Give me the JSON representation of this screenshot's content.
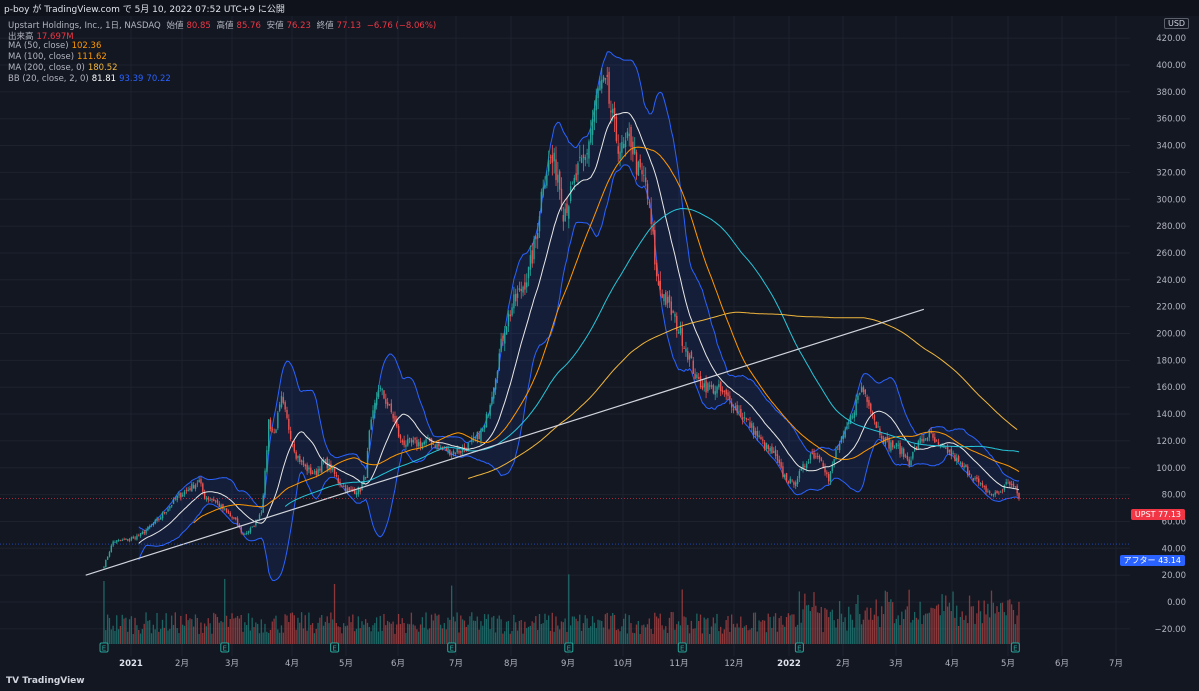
{
  "header": {
    "publish_text": "p-boy が TradingView.com で 5月 10, 2022 07:52 UTC+9 に公開"
  },
  "legend": {
    "symbol": "Upstart Holdings, Inc., 1日, NASDAQ",
    "ohlc": {
      "open_label": "始値",
      "open": "80.85",
      "high_label": "高値",
      "high": "85.76",
      "low_label": "安値",
      "low": "76.23",
      "close_label": "終値",
      "close": "77.13",
      "change": "−6.76 (−8.06%)"
    },
    "volume_label": "出来高",
    "volume": "17.697M",
    "ma50_label": "MA (50, close)",
    "ma50": "102.36",
    "ma100_label": "MA (100, close)",
    "ma100": "111.62",
    "ma200_label": "MA (200, close, 0)",
    "ma200": "180.52",
    "bb_label": "BB (20, close, 2, 0)",
    "bb_mid": "81.81",
    "bb_upper": "93.39",
    "bb_lower": "70.22"
  },
  "price_labels": {
    "currency": "USD",
    "current_symbol": "UPST",
    "current_price": "77.13",
    "after_label": "アフター",
    "after_value": "43.14"
  },
  "footer": {
    "brand": "TradingView"
  },
  "colors": {
    "background": "#131722",
    "up": "#26a69a",
    "down": "#ef5350",
    "bb": "#2962ff",
    "ma_white": "#e8e8e8",
    "ma_orange": "#ff9800",
    "ma_cyan": "#26c6da",
    "ma_yellow": "#f0b63c",
    "trendline": "#d1d4dc"
  },
  "chart_data": {
    "type": "candlestick",
    "symbol": "UPST",
    "y_ticks": [
      "420.00",
      "400.00",
      "380.00",
      "360.00",
      "340.00",
      "320.00",
      "300.00",
      "280.00",
      "260.00",
      "240.00",
      "220.00",
      "200.00",
      "180.00",
      "160.00",
      "140.00",
      "120.00",
      "100.00",
      "80.00",
      "60.00",
      "40.00",
      "20.00",
      "0.00",
      "−20.00"
    ],
    "x_ticks": [
      "2021",
      "2月",
      "3月",
      "4月",
      "5月",
      "6月",
      "7月",
      "8月",
      "9月",
      "10月",
      "11月",
      "12月",
      "2022",
      "2月",
      "3月",
      "4月",
      "5月",
      "6月",
      "7月"
    ],
    "price_path": [
      [
        0,
        27
      ],
      [
        5,
        45
      ],
      [
        12,
        46
      ],
      [
        20,
        50
      ],
      [
        30,
        62
      ],
      [
        40,
        78
      ],
      [
        47,
        85
      ],
      [
        52,
        90
      ],
      [
        55,
        78
      ],
      [
        60,
        76
      ],
      [
        66,
        68
      ],
      [
        72,
        60
      ],
      [
        76,
        50
      ],
      [
        81,
        55
      ],
      [
        86,
        68
      ],
      [
        88,
        95
      ],
      [
        90,
        135
      ],
      [
        93,
        125
      ],
      [
        97,
        150
      ],
      [
        101,
        130
      ],
      [
        105,
        110
      ],
      [
        110,
        100
      ],
      [
        115,
        95
      ],
      [
        120,
        105
      ],
      [
        124,
        100
      ],
      [
        128,
        90
      ],
      [
        134,
        82
      ],
      [
        140,
        84
      ],
      [
        143,
        95
      ],
      [
        145,
        125
      ],
      [
        150,
        160
      ],
      [
        154,
        150
      ],
      [
        158,
        138
      ],
      [
        162,
        120
      ],
      [
        166,
        118
      ],
      [
        172,
        118
      ],
      [
        178,
        120
      ],
      [
        184,
        115
      ],
      [
        190,
        112
      ],
      [
        196,
        113
      ],
      [
        202,
        120
      ],
      [
        208,
        130
      ],
      [
        214,
        170
      ],
      [
        219,
        205
      ],
      [
        223,
        220
      ],
      [
        227,
        230
      ],
      [
        232,
        245
      ],
      [
        236,
        270
      ],
      [
        240,
        315
      ],
      [
        244,
        330
      ],
      [
        248,
        320
      ],
      [
        251,
        292
      ],
      [
        255,
        302
      ],
      [
        259,
        320
      ],
      [
        263,
        330
      ],
      [
        267,
        360
      ],
      [
        271,
        385
      ],
      [
        275,
        380
      ],
      [
        279,
        350
      ],
      [
        283,
        335
      ],
      [
        288,
        345
      ],
      [
        292,
        320
      ],
      [
        296,
        312
      ],
      [
        300,
        270
      ],
      [
        302,
        240
      ],
      [
        306,
        228
      ],
      [
        312,
        210
      ],
      [
        318,
        190
      ],
      [
        324,
        165
      ],
      [
        330,
        160
      ],
      [
        336,
        158
      ],
      [
        342,
        150
      ],
      [
        348,
        140
      ],
      [
        354,
        130
      ],
      [
        360,
        118
      ],
      [
        366,
        110
      ],
      [
        371,
        95
      ],
      [
        376,
        88
      ],
      [
        380,
        95
      ],
      [
        386,
        110
      ],
      [
        392,
        108
      ],
      [
        396,
        90
      ],
      [
        400,
        112
      ],
      [
        405,
        125
      ],
      [
        410,
        145
      ],
      [
        414,
        160
      ],
      [
        418,
        150
      ],
      [
        422,
        132
      ],
      [
        428,
        118
      ],
      [
        434,
        115
      ],
      [
        440,
        105
      ],
      [
        446,
        120
      ],
      [
        451,
        125
      ],
      [
        456,
        115
      ],
      [
        462,
        112
      ],
      [
        468,
        102
      ],
      [
        474,
        95
      ],
      [
        480,
        85
      ],
      [
        486,
        80
      ],
      [
        490,
        82
      ],
      [
        494,
        90
      ],
      [
        498,
        84
      ],
      [
        500,
        77.13
      ]
    ],
    "x_axis": "trading days since 2020-12-17 (approx.)",
    "ylim": [
      -25,
      440
    ],
    "last_close": 77.13,
    "bollinger_bands": {
      "period": 20,
      "stdev": 2,
      "upper": 93.39,
      "middle": 81.81,
      "lower": 70.22
    },
    "moving_averages": [
      {
        "name": "MA (50, close)",
        "last": 102.36
      },
      {
        "name": "MA (100, close)",
        "last": 111.62
      },
      {
        "name": "MA (200, close, 0)",
        "last": 180.52
      }
    ],
    "volume_last": "17.697M",
    "trendline": {
      "from": [
        -10,
        20
      ],
      "to": [
        448,
        218
      ]
    },
    "earnings_markers": [
      0,
      66,
      126,
      190,
      254,
      316,
      380,
      498
    ],
    "after_hours": 43.14
  }
}
